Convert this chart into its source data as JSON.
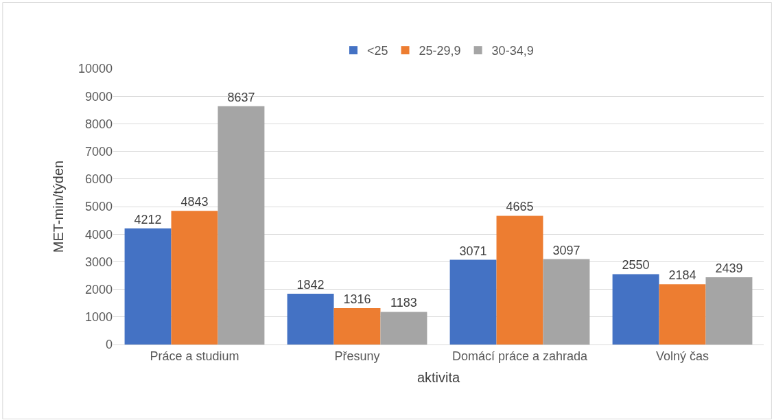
{
  "chart_data": {
    "type": "bar",
    "categories": [
      "Práce a studium",
      "Přesuny",
      "Domácí práce a zahrada",
      "Volný čas"
    ],
    "series": [
      {
        "name": "<25",
        "color": "#4472c4",
        "values": [
          4212,
          1842,
          3071,
          2550
        ]
      },
      {
        "name": "25-29,9",
        "color": "#ed7d31",
        "values": [
          4843,
          1316,
          4665,
          2184
        ]
      },
      {
        "name": "30-34,9",
        "color": "#a5a5a5",
        "values": [
          8637,
          1183,
          3097,
          2439
        ]
      }
    ],
    "xlabel": "aktivita",
    "ylabel": "MET-min/týden",
    "ylim": [
      0,
      10000
    ],
    "yticks": [
      0,
      1000,
      2000,
      3000,
      4000,
      5000,
      6000,
      7000,
      8000,
      9000,
      10000
    ],
    "grid": "y",
    "legend": "top",
    "data_labels": true
  }
}
